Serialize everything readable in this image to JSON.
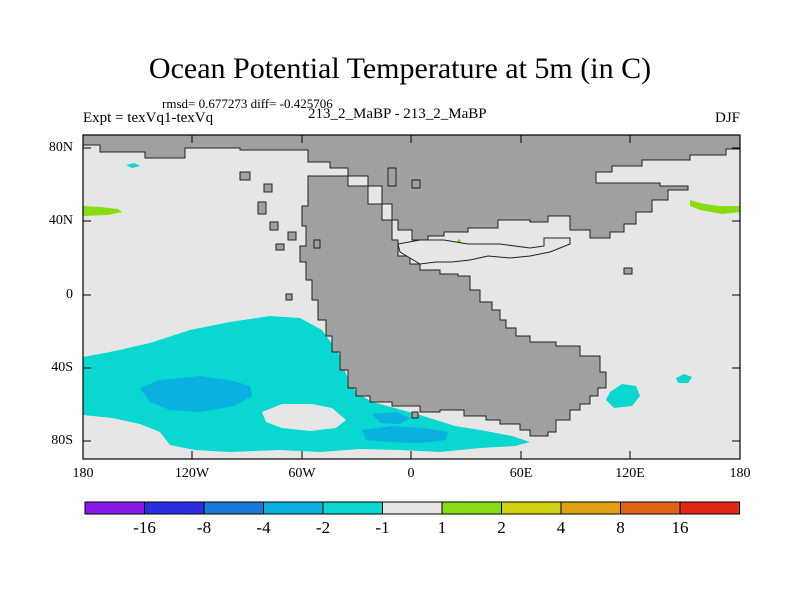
{
  "title": "Ocean Potential Temperature at 5m (in C)",
  "stats_line": "rmsd= 0.677273 diff= -0.425706",
  "experiment_line": "Expt = texVq1-texVq",
  "cases_line": "213_2_MaBP - 213_2_MaBP",
  "season": "DJF",
  "lat_labels": [
    "80N",
    "40N",
    "0",
    "40S",
    "80S"
  ],
  "lon_labels": [
    "180",
    "120W",
    "60W",
    "0",
    "60E",
    "120E",
    "180"
  ],
  "colorbar": {
    "colors": [
      "#8b1ae8",
      "#2c2ce0",
      "#1a78d8",
      "#0ab0e0",
      "#08d8d0",
      "#e6e6e6",
      "#88dc14",
      "#d2d214",
      "#e0a014",
      "#e06414",
      "#e02814"
    ],
    "labels": [
      "-16",
      "-8",
      "-4",
      "-2",
      "-1",
      "1",
      "2",
      "4",
      "8",
      "16"
    ]
  },
  "colors": {
    "background_field": "#e6e6e6",
    "land": "#a0a0a0",
    "cyan_band": "#08d8d0",
    "light_blue_band": "#0ab0e0",
    "green_band": "#88dc14"
  }
}
